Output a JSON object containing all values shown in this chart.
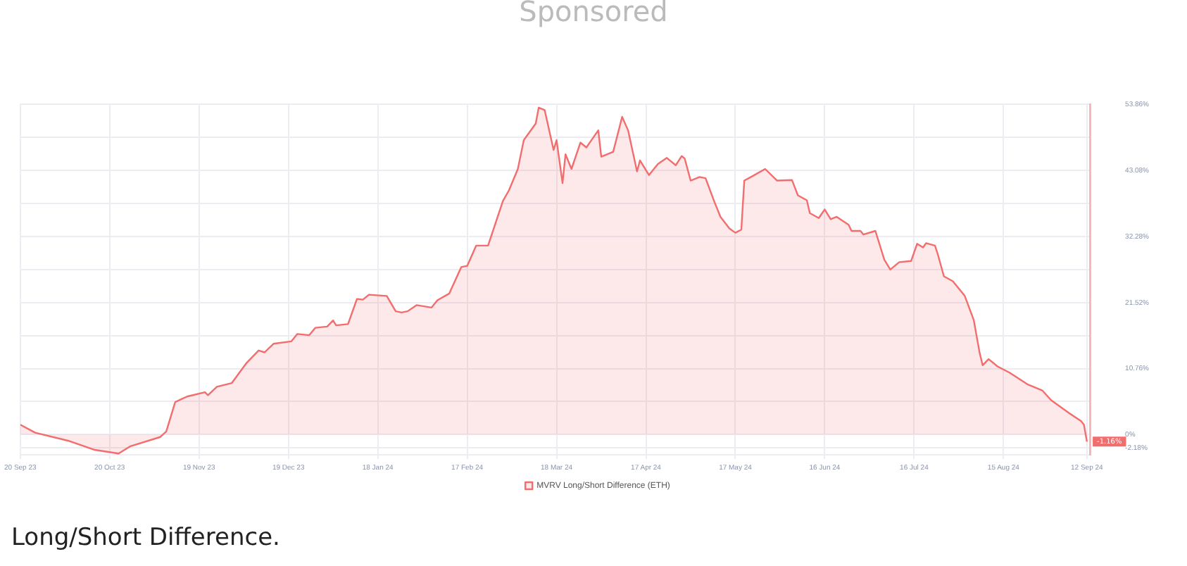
{
  "chart_data": {
    "type": "area",
    "x": [
      "2023-09-20",
      "2023-09-25",
      "2023-10-06",
      "2023-10-15",
      "2023-10-23",
      "2023-10-27",
      "2023-11-06",
      "2023-11-08",
      "2023-11-11",
      "2023-11-15",
      "2023-11-21",
      "2023-11-22",
      "2023-11-25",
      "2023-11-30",
      "2023-12-05",
      "2023-12-09",
      "2023-12-11",
      "2023-12-14",
      "2023-12-20",
      "2023-12-22",
      "2023-12-26",
      "2023-12-28",
      "2024-01-01",
      "2024-01-03",
      "2024-01-04",
      "2024-01-08",
      "2024-01-11",
      "2024-01-13",
      "2024-01-15",
      "2024-01-21",
      "2024-01-24",
      "2024-01-26",
      "2024-01-28",
      "2024-01-31",
      "2024-02-05",
      "2024-02-07",
      "2024-02-11",
      "2024-02-15",
      "2024-02-17",
      "2024-02-20",
      "2024-02-24",
      "2024-02-29",
      "2024-03-02",
      "2024-03-05",
      "2024-03-07",
      "2024-03-11",
      "2024-03-12",
      "2024-03-14",
      "2024-03-17",
      "2024-03-18",
      "2024-03-20",
      "2024-03-21",
      "2024-03-23",
      "2024-03-26",
      "2024-03-28",
      "2024-03-29",
      "2024-04-01",
      "2024-04-02",
      "2024-04-06",
      "2024-04-09",
      "2024-04-11",
      "2024-04-14",
      "2024-04-15",
      "2024-04-18",
      "2024-04-21",
      "2024-04-24",
      "2024-04-27",
      "2024-04-29",
      "2024-04-30",
      "2024-05-02",
      "2024-05-05",
      "2024-05-07",
      "2024-05-10",
      "2024-05-12",
      "2024-05-15",
      "2024-05-17",
      "2024-05-19",
      "2024-05-20",
      "2024-05-23",
      "2024-05-27",
      "2024-05-31",
      "2024-06-05",
      "2024-06-07",
      "2024-06-10",
      "2024-06-11",
      "2024-06-14",
      "2024-06-16",
      "2024-06-18",
      "2024-06-20",
      "2024-06-24",
      "2024-06-25",
      "2024-06-28",
      "2024-06-29",
      "2024-07-03",
      "2024-07-06",
      "2024-07-08",
      "2024-07-11",
      "2024-07-15",
      "2024-07-17",
      "2024-07-19",
      "2024-07-20",
      "2024-07-23",
      "2024-07-24",
      "2024-07-26",
      "2024-07-29",
      "2024-08-02",
      "2024-08-05",
      "2024-08-07",
      "2024-08-08",
      "2024-08-10",
      "2024-08-13",
      "2024-08-17",
      "2024-08-23",
      "2024-08-28",
      "2024-08-31",
      "2024-09-06",
      "2024-09-10",
      "2024-09-11",
      "2024-09-12"
    ],
    "series": [
      {
        "name": "MVRV Long/Short Difference (ETH)",
        "color": "#f26d6d",
        "values": [
          1.6,
          0.3,
          -1.0,
          -2.5,
          -3.1,
          -1.9,
          -0.4,
          0.5,
          5.3,
          6.2,
          6.9,
          6.4,
          7.8,
          8.4,
          11.7,
          13.7,
          13.4,
          14.8,
          15.2,
          16.4,
          16.2,
          17.4,
          17.6,
          18.6,
          17.8,
          18.0,
          22.1,
          22.0,
          22.8,
          22.6,
          20.1,
          19.9,
          20.1,
          21.1,
          20.7,
          21.9,
          23.0,
          27.3,
          27.5,
          30.8,
          30.8,
          38.1,
          39.8,
          43.3,
          48.0,
          50.7,
          53.3,
          52.9,
          46.4,
          48.0,
          41.0,
          45.7,
          43.3,
          47.6,
          46.8,
          47.5,
          49.6,
          45.3,
          46.1,
          51.8,
          49.6,
          42.9,
          44.7,
          42.3,
          44.1,
          45.1,
          43.9,
          45.4,
          45.0,
          41.4,
          42.0,
          41.8,
          37.9,
          35.5,
          33.6,
          32.9,
          33.4,
          41.4,
          42.2,
          43.3,
          41.4,
          41.5,
          39.0,
          38.2,
          36.1,
          35.3,
          36.7,
          35.1,
          35.5,
          34.2,
          33.2,
          33.2,
          32.6,
          33.2,
          28.5,
          26.9,
          28.1,
          28.3,
          31.1,
          30.5,
          31.2,
          30.8,
          29.3,
          25.8,
          25.0,
          22.6,
          18.7,
          13.3,
          11.3,
          12.3,
          11.1,
          10.1,
          8.2,
          7.2,
          5.6,
          3.5,
          2.2,
          1.6,
          -1.16
        ],
        "value_labels": [
          null,
          null,
          null,
          null,
          null,
          null,
          null,
          null,
          null,
          null,
          null,
          null,
          null,
          null,
          null,
          null,
          null,
          null,
          null,
          null,
          null,
          null,
          null,
          null,
          null,
          null,
          null,
          null,
          null,
          null,
          null,
          null,
          null,
          null,
          null,
          null,
          null,
          null,
          null,
          null,
          null,
          null,
          null,
          null,
          null,
          null,
          null,
          null,
          null,
          null,
          null,
          null,
          null,
          null,
          null,
          null,
          null,
          null,
          null,
          null,
          null,
          null,
          null,
          null,
          null,
          null,
          null,
          null,
          null,
          null,
          null,
          null,
          null,
          null,
          null,
          null,
          null,
          null,
          null,
          null,
          null,
          null,
          null,
          null,
          null,
          null,
          null,
          null,
          null,
          null,
          null,
          null,
          null,
          null,
          null,
          null,
          null,
          null,
          null,
          null,
          null,
          null,
          null,
          null,
          null,
          null,
          null,
          null,
          null,
          null,
          null,
          null,
          null,
          null,
          null,
          null,
          null,
          null,
          "-1.16%"
        ]
      }
    ],
    "xlim": [
      "2023-09-20",
      "2024-09-13"
    ],
    "xticks": [
      {
        "value": "2023-09-20",
        "label": "20 Sep 23"
      },
      {
        "value": "2023-10-20",
        "label": "20 Oct 23"
      },
      {
        "value": "2023-11-19",
        "label": "19 Nov 23"
      },
      {
        "value": "2023-12-19",
        "label": "19 Dec 23"
      },
      {
        "value": "2024-01-18",
        "label": "18 Jan 24"
      },
      {
        "value": "2024-02-17",
        "label": "17 Feb 24"
      },
      {
        "value": "2024-03-18",
        "label": "18 Mar 24"
      },
      {
        "value": "2024-04-17",
        "label": "17 Apr 24"
      },
      {
        "value": "2024-05-17",
        "label": "17 May 24"
      },
      {
        "value": "2024-06-16",
        "label": "16 Jun 24"
      },
      {
        "value": "2024-07-16",
        "label": "16 Jul 24"
      },
      {
        "value": "2024-08-15",
        "label": "15 Aug 24"
      },
      {
        "value": "2024-09-12",
        "label": "12 Sep 24"
      }
    ],
    "ylim": [
      -3.3,
      53.86
    ],
    "yticks": [
      {
        "value": -2.18,
        "label": "-2.18%"
      },
      {
        "value": 0,
        "label": "0%"
      },
      {
        "value": 5.38,
        "label": null
      },
      {
        "value": 10.76,
        "label": "10.76%"
      },
      {
        "value": 16.14,
        "label": null
      },
      {
        "value": 21.52,
        "label": "21.52%"
      },
      {
        "value": 26.9,
        "label": null
      },
      {
        "value": 32.28,
        "label": "32.28%"
      },
      {
        "value": 37.68,
        "label": null
      },
      {
        "value": 43.08,
        "label": "43.08%"
      },
      {
        "value": 48.47,
        "label": null
      },
      {
        "value": 53.86,
        "label": "53.86%"
      }
    ],
    "grid": true,
    "legend": "bottom",
    "annotations": [
      "Sponsored",
      "Long/Short Difference."
    ]
  }
}
